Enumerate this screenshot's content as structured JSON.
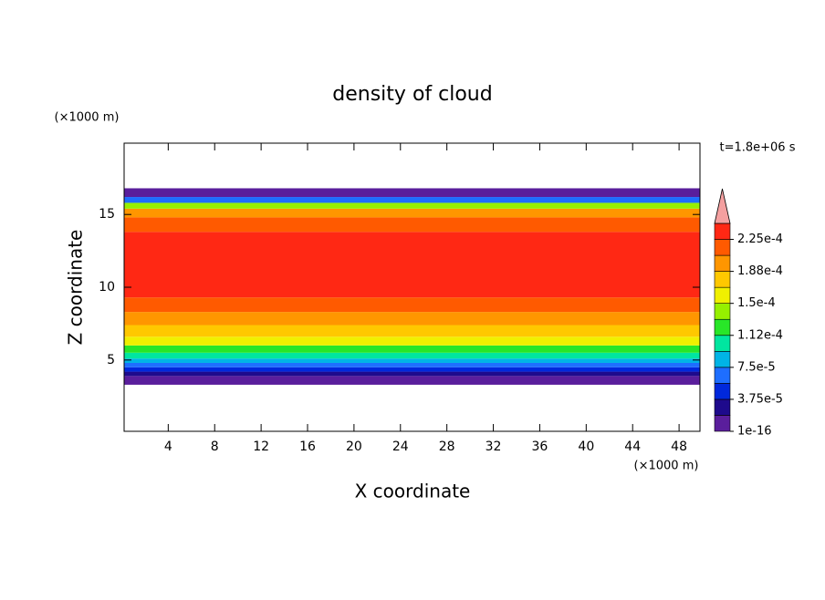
{
  "chart_data": {
    "type": "contour-profile",
    "title": "density of cloud",
    "x_label": "X coordinate",
    "y_label": "Z coordinate",
    "x_unit": "(×1000 m)",
    "y_unit": "(×1000 m)",
    "time_label": "t=1.8e+06 s",
    "xlim": [
      0.2,
      49.8
    ],
    "ylim": [
      0.1,
      19.9
    ],
    "xticks": [
      4,
      8,
      12,
      16,
      20,
      24,
      28,
      32,
      36,
      40,
      44,
      48
    ],
    "yticks": [
      5,
      10,
      15
    ],
    "z_edges": [
      3.3,
      3.9,
      4.2,
      4.5,
      4.8,
      5.1,
      5.5,
      6.0,
      6.6,
      7.4,
      8.3,
      9.3,
      13.8,
      14.8,
      15.4,
      15.8,
      16.2,
      16.8
    ],
    "values": [
      1e-05,
      2.5e-05,
      4.5e-05,
      6.5e-05,
      8.5e-05,
      0.000105,
      0.000125,
      0.00016,
      0.00018,
      0.0002,
      0.00022,
      0.00024,
      0.00022,
      0.000195,
      0.00014,
      7e-05,
      1e-05
    ],
    "colorbar": {
      "levels": [
        1e-16,
        1.875e-05,
        3.75e-05,
        5.625e-05,
        7.5e-05,
        9.375e-05,
        0.0001125,
        0.00013125,
        0.00015,
        0.00016875,
        0.0001875,
        0.00020625,
        0.000225,
        0.00024375
      ],
      "colors": [
        "#5a1e9c",
        "#1e0a8c",
        "#0028dc",
        "#1e6eff",
        "#00b4e6",
        "#00e6a0",
        "#28e628",
        "#96f000",
        "#f0f000",
        "#ffc800",
        "#ff9600",
        "#ff5a00",
        "#ff2814"
      ],
      "over_color": "#f4a0a0",
      "ticks": [
        {
          "value": 1e-16,
          "label": "1e-16"
        },
        {
          "value": 3.75e-05,
          "label": "3.75e-5"
        },
        {
          "value": 7.5e-05,
          "label": "7.5e-5"
        },
        {
          "value": 0.0001125,
          "label": "1.12e-4"
        },
        {
          "value": 0.00015,
          "label": "1.5e-4"
        },
        {
          "value": 0.0001875,
          "label": "1.88e-4"
        },
        {
          "value": 0.000225,
          "label": "2.25e-4"
        }
      ]
    }
  }
}
